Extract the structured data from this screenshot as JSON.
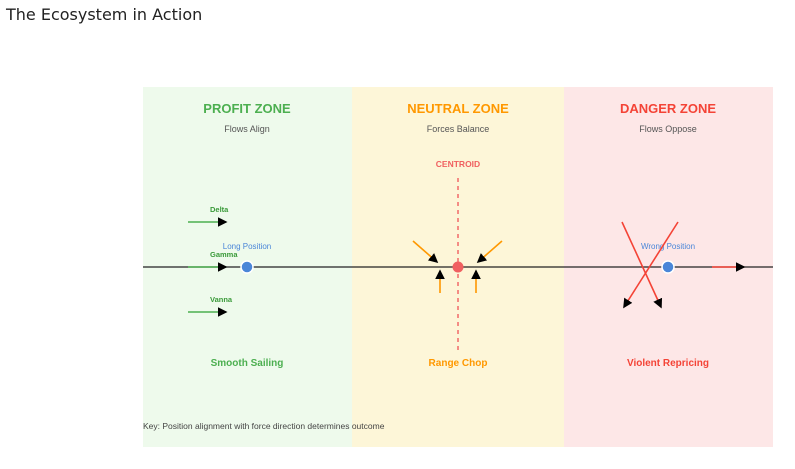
{
  "page": {
    "title": "The Ecosystem in Action"
  },
  "zones": [
    {
      "title": "PROFIT ZONE",
      "subtitle": "Flows Align",
      "outcome": "Smooth Sailing",
      "color": "#4caf50",
      "bg": "#eefaec"
    },
    {
      "title": "NEUTRAL ZONE",
      "subtitle": "Forces Balance",
      "outcome": "Range Chop",
      "color": "#ff9800",
      "bg": "#fdf6d8"
    },
    {
      "title": "DANGER ZONE",
      "subtitle": "Flows Oppose",
      "outcome": "Violent Repricing",
      "color": "#f44336",
      "bg": "#fde7e7"
    }
  ],
  "profit": {
    "flows": [
      "Delta",
      "Gamma",
      "Vanna"
    ],
    "position_label": "Long Position"
  },
  "neutral": {
    "centroid_label": "CENTROID"
  },
  "danger": {
    "position_label": "Wrong Position"
  },
  "key_text": "Key: Position alignment with force direction determines outcome",
  "colors": {
    "position_dot": "#4a86d8",
    "centroid_dot": "#f06060",
    "axis": "#222222",
    "force_green": "#4caf50",
    "force_orange": "#ff9800",
    "force_red": "#f44336"
  }
}
